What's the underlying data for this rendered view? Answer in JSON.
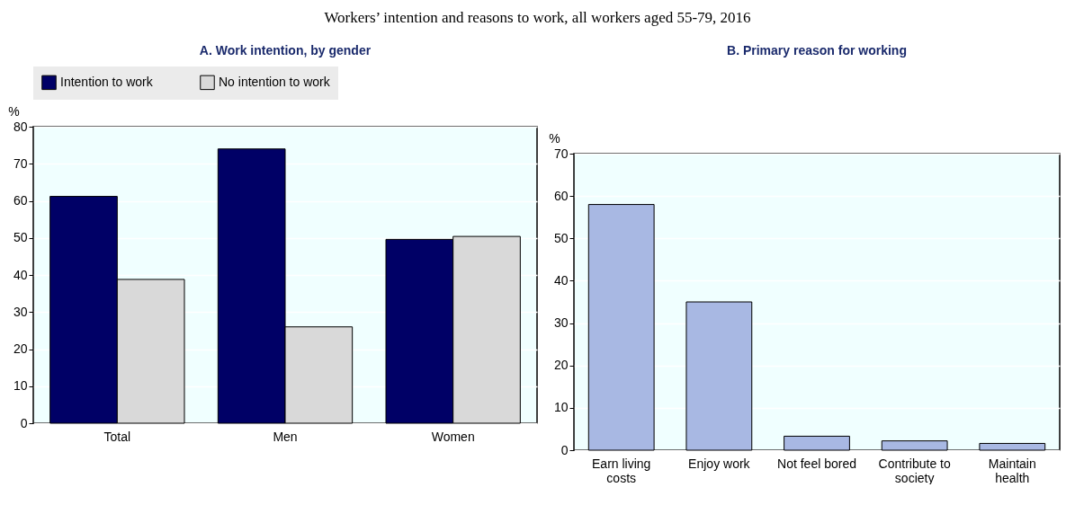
{
  "chart_data": [
    {
      "type": "other",
      "title": "Workers’ intention and reasons to work, all workers aged 55-79, 2016"
    },
    {
      "type": "bar",
      "title": "A. Work intention, by gender",
      "ylabel": "%",
      "categories": [
        "Total",
        "Men",
        "Women"
      ],
      "series": [
        {
          "name": "Intention to work",
          "color": "#000066",
          "values": [
            61.2,
            74,
            49.6
          ]
        },
        {
          "name": "No intention to work",
          "color": "#d9d9d9",
          "values": [
            38.8,
            26,
            50.4
          ]
        }
      ],
      "ylim": [
        0,
        80
      ],
      "yticks": [
        0,
        10,
        20,
        30,
        40,
        50,
        60,
        70,
        80
      ],
      "grid": "y",
      "legend": "top"
    },
    {
      "type": "bar",
      "title": "B. Primary reason for working",
      "ylabel": "%",
      "categories": [
        "Earn living costs",
        "Enjoy work",
        "Not feel bored",
        "Contribute to society",
        "Maintain health"
      ],
      "values": [
        58,
        35,
        3.3,
        2.2,
        1.6
      ],
      "color": "#a8b8e3",
      "ylim": [
        0,
        70
      ],
      "yticks": [
        0,
        10,
        20,
        30,
        40,
        50,
        60,
        70
      ],
      "grid": "y"
    }
  ]
}
